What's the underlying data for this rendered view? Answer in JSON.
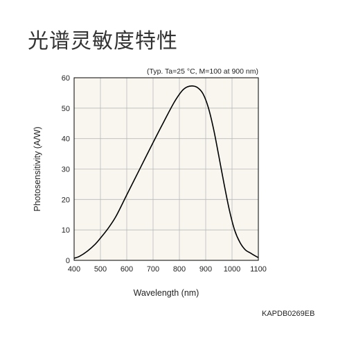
{
  "page": {
    "title": "光谱灵敏度特性",
    "figure_code": "KAPDB0269EB"
  },
  "chart_data": {
    "type": "line",
    "title": "",
    "condition_note": "(Typ. Ta=25 °C, M=100 at 900 nm)",
    "xlabel": "Wavelength (nm)",
    "ylabel": "Photosensitivity (A/W)",
    "xlim": [
      400,
      1100
    ],
    "ylim": [
      0,
      60
    ],
    "xticks": [
      400,
      500,
      600,
      700,
      800,
      900,
      1000,
      1100
    ],
    "yticks": [
      0,
      10,
      20,
      30,
      40,
      50,
      60
    ],
    "grid": true,
    "background": "#f8f6ef",
    "series": [
      {
        "color": "#000000",
        "x": [
          400,
          420,
          450,
          480,
          500,
          530,
          560,
          600,
          650,
          700,
          740,
          780,
          810,
          830,
          850,
          870,
          890,
          910,
          930,
          950,
          970,
          990,
          1010,
          1030,
          1050,
          1070,
          1085,
          1100
        ],
        "y": [
          0.7,
          1.3,
          3.0,
          5.3,
          7.3,
          10.6,
          14.6,
          21.5,
          30.1,
          38.7,
          45.4,
          51.9,
          55.7,
          57.0,
          57.3,
          56.7,
          54.7,
          50.2,
          43.1,
          34.2,
          25.0,
          16.5,
          9.9,
          5.9,
          3.5,
          2.4,
          1.6,
          0.9
        ]
      }
    ]
  }
}
